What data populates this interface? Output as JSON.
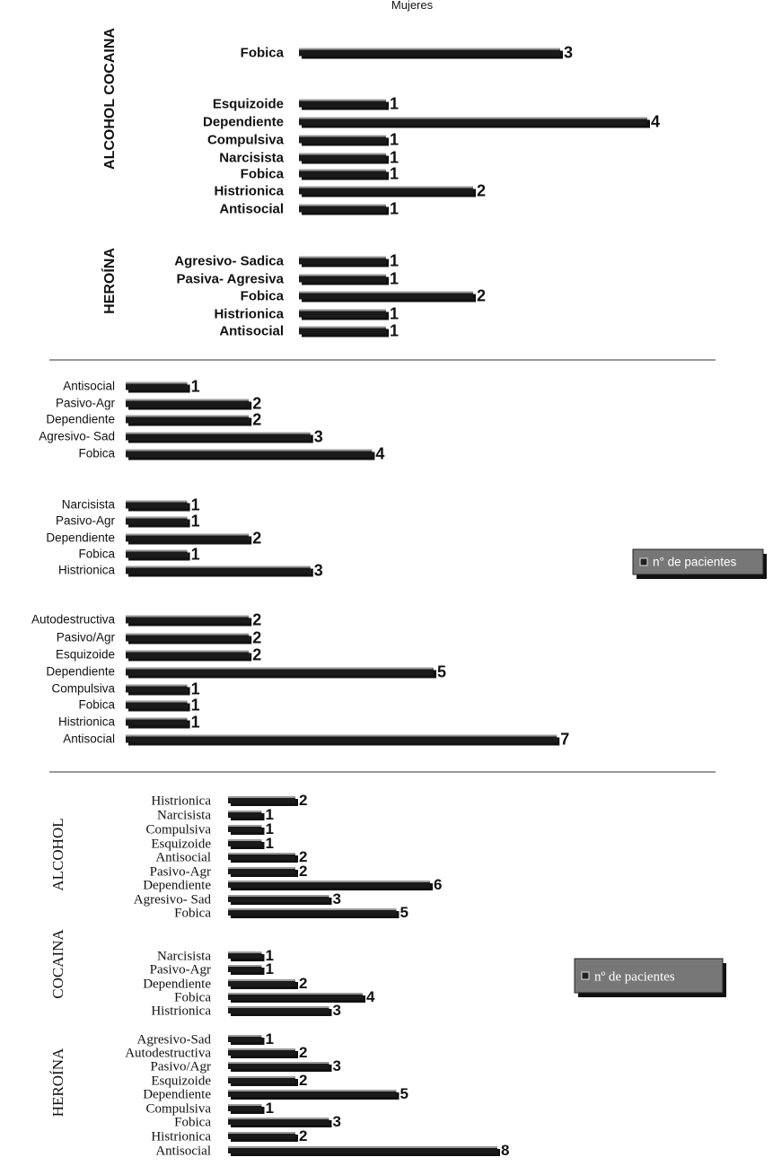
{
  "page_title": "Mujeres",
  "chart_data": [
    {
      "type": "bar",
      "orientation": "horizontal",
      "style": "bold",
      "groups": [
        {
          "label": "ALCOHOL COCAINA",
          "bars": [
            {
              "category": "Fobica",
              "value": 3
            }
          ]
        },
        {
          "label": "",
          "bars": [
            {
              "category": "Esquizoide",
              "value": 1
            },
            {
              "category": "Dependiente",
              "value": 4
            },
            {
              "category": "Compulsiva",
              "value": 1
            },
            {
              "category": "Narcisista",
              "value": 1
            },
            {
              "category": "Fobica",
              "value": 1
            },
            {
              "category": "Histrionica",
              "value": 2
            },
            {
              "category": "Antisocial",
              "value": 1
            }
          ]
        },
        {
          "label": "HEROÍNA",
          "bars": [
            {
              "category": "Agresivo- Sadica",
              "value": 1
            },
            {
              "category": "Pasiva- Agresiva",
              "value": 1
            },
            {
              "category": "Fobica",
              "value": 2
            },
            {
              "category": "Histrionica",
              "value": 1
            },
            {
              "category": "Antisocial",
              "value": 1
            }
          ]
        }
      ]
    },
    {
      "type": "bar",
      "orientation": "horizontal",
      "style": "sans",
      "legend": {
        "label": "n° de pacientes",
        "placement": "right"
      },
      "groups": [
        {
          "label": "",
          "bars": [
            {
              "category": "Antisocial",
              "value": 1
            },
            {
              "category": "Pasivo-Agr",
              "value": 2
            },
            {
              "category": "Dependiente",
              "value": 2
            },
            {
              "category": "Agresivo- Sad",
              "value": 3
            },
            {
              "category": "Fobica",
              "value": 4
            }
          ]
        },
        {
          "label": "",
          "bars": [
            {
              "category": "Narcisista",
              "value": 1
            },
            {
              "category": "Pasivo-Agr",
              "value": 1
            },
            {
              "category": "Dependiente",
              "value": 2
            },
            {
              "category": "Fobica",
              "value": 1
            },
            {
              "category": "Histrionica",
              "value": 3
            }
          ]
        },
        {
          "label": "",
          "bars": [
            {
              "category": "Autodestructiva",
              "value": 2
            },
            {
              "category": "Pasivo/Agr",
              "value": 2
            },
            {
              "category": "Esquizoide",
              "value": 2
            },
            {
              "category": "Dependiente",
              "value": 5
            },
            {
              "category": "Compulsiva",
              "value": 1
            },
            {
              "category": "Fobica",
              "value": 1
            },
            {
              "category": "Histrionica",
              "value": 1
            },
            {
              "category": "Antisocial",
              "value": 7
            }
          ]
        }
      ]
    },
    {
      "type": "bar",
      "orientation": "horizontal",
      "style": "serif",
      "legend": {
        "label": "nº de pacientes",
        "placement": "right"
      },
      "groups": [
        {
          "label": "ALCOHOL",
          "bars": [
            {
              "category": "Histrionica",
              "value": 2
            },
            {
              "category": "Narcisista",
              "value": 1
            },
            {
              "category": "Compulsiva",
              "value": 1
            },
            {
              "category": "Esquizoide",
              "value": 1
            },
            {
              "category": "Antisocial",
              "value": 2
            },
            {
              "category": "Pasivo-Agr",
              "value": 2
            },
            {
              "category": "Dependiente",
              "value": 6
            },
            {
              "category": "Agresivo- Sad",
              "value": 3
            },
            {
              "category": "Fobica",
              "value": 5
            }
          ]
        },
        {
          "label": "COCAINA",
          "bars": [
            {
              "category": "Narcisista",
              "value": 1
            },
            {
              "category": "Pasivo-Agr",
              "value": 1
            },
            {
              "category": "Dependiente",
              "value": 2
            },
            {
              "category": "Fobica",
              "value": 4
            },
            {
              "category": "Histrionica",
              "value": 3
            }
          ]
        },
        {
          "label": "HEROÍNA",
          "bars": [
            {
              "category": "Agresivo-Sad",
              "value": 1
            },
            {
              "category": "Autodestructiva",
              "value": 2
            },
            {
              "category": "Pasivo/Agr",
              "value": 3
            },
            {
              "category": "Esquizoide",
              "value": 2
            },
            {
              "category": "Dependiente",
              "value": 5
            },
            {
              "category": "Compulsiva",
              "value": 1
            },
            {
              "category": "Fobica",
              "value": 3
            },
            {
              "category": "Histrionica",
              "value": 2
            },
            {
              "category": "Antisocial",
              "value": 8
            }
          ]
        }
      ]
    }
  ]
}
